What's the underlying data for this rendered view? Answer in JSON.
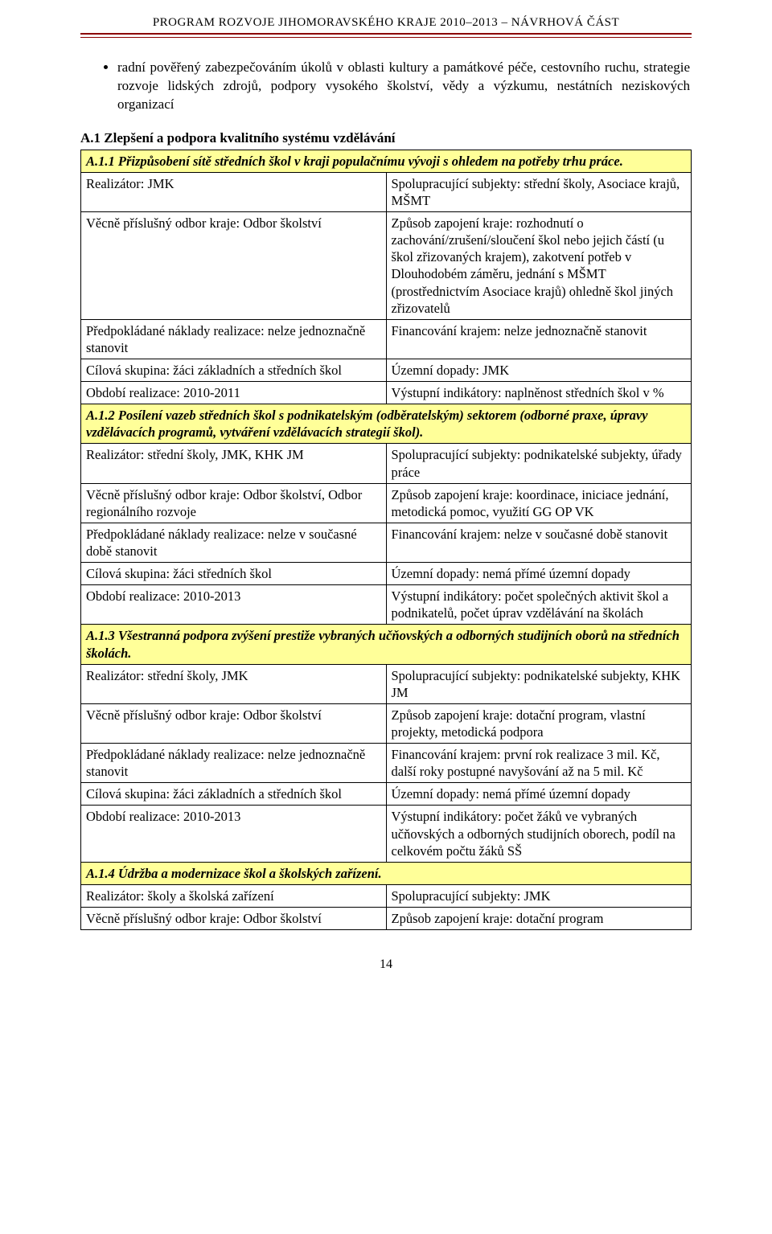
{
  "colors": {
    "rule": "#8b0000",
    "highlight_bg": "#ffff99",
    "border": "#000000",
    "text": "#000000",
    "page_bg": "#ffffff"
  },
  "typography": {
    "font_family": "Times New Roman",
    "body_size_pt": 12,
    "header_size_pt": 11
  },
  "header": "PROGRAM ROZVOJE JIHOMORAVSKÉHO KRAJE 2010–2013 – NÁVRHOVÁ ČÁST",
  "bullet": "radní pověřený zabezpečováním úkolů v oblasti kultury a památkové péče, cestovního ruchu, strategie rozvoje lidských zdrojů, podpory vysokého školství, vědy a výzkumu, nestátních neziskových organizací",
  "section_heading": "A.1 Zlepšení a podpora kvalitního systému vzdělávání",
  "tables": {
    "a11": {
      "title": "A.1.1 Přizpůsobení sítě středních škol v kraji populačnímu vývoji s ohledem na potřeby trhu práce.",
      "rows": [
        [
          "Realizátor: JMK",
          "Spolupracující subjekty: střední školy, Asociace krajů, MŠMT"
        ],
        [
          "Věcně příslušný odbor kraje: Odbor školství",
          "Způsob zapojení kraje: rozhodnutí o zachování/zrušení/sloučení škol nebo jejich částí (u škol zřizovaných krajem), zakotvení potřeb v Dlouhodobém záměru, jednání s MŠMT (prostřednictvím Asociace krajů) ohledně škol jiných zřizovatelů"
        ],
        [
          "Předpokládané náklady realizace: nelze jednoznačně stanovit",
          "Financování krajem: nelze jednoznačně stanovit"
        ],
        [
          "Cílová skupina: žáci základních a středních škol",
          "Územní dopady: JMK"
        ],
        [
          "Období realizace: 2010-2011",
          "Výstupní indikátory: naplněnost středních škol v %"
        ]
      ]
    },
    "a12": {
      "title": "A.1.2 Posílení vazeb středních škol s podnikatelským (odběratelským) sektorem (odborné praxe, úpravy vzdělávacích programů, vytváření vzdělávacích strategií škol).",
      "rows": [
        [
          "Realizátor: střední školy, JMK, KHK JM",
          "Spolupracující subjekty: podnikatelské subjekty, úřady práce"
        ],
        [
          "Věcně příslušný odbor kraje: Odbor školství, Odbor regionálního rozvoje",
          "Způsob zapojení kraje: koordinace, iniciace jednání, metodická pomoc, využití GG OP VK"
        ],
        [
          "Předpokládané náklady realizace: nelze v současné době stanovit",
          "Financování krajem: nelze v současné době stanovit"
        ],
        [
          "Cílová skupina: žáci středních škol",
          "Územní dopady: nemá přímé územní dopady"
        ],
        [
          "Období realizace: 2010-2013",
          "Výstupní indikátory: počet společných aktivit škol a podnikatelů, počet úprav vzdělávání na školách"
        ]
      ]
    },
    "a13": {
      "title": "A.1.3 Všestranná podpora zvýšení prestiže vybraných učňovských a odborných studijních oborů na středních školách.",
      "rows": [
        [
          "Realizátor: střední školy, JMK",
          "Spolupracující subjekty: podnikatelské subjekty, KHK JM"
        ],
        [
          "Věcně příslušný odbor kraje: Odbor školství",
          "Způsob zapojení kraje: dotační program, vlastní projekty, metodická podpora"
        ],
        [
          "Předpokládané náklady realizace: nelze jednoznačně stanovit",
          "Financování krajem: první rok realizace 3 mil. Kč, další roky postupné navyšování až na 5 mil. Kč"
        ],
        [
          "Cílová skupina: žáci základních a středních škol",
          "Územní dopady: nemá přímé územní dopady"
        ],
        [
          "Období realizace: 2010-2013",
          "Výstupní indikátory: počet žáků ve vybraných učňovských a odborných studijních oborech, podíl na celkovém počtu žáků SŠ"
        ]
      ]
    },
    "a14": {
      "title": "A.1.4 Údržba a modernizace škol a školských zařízení.",
      "rows": [
        [
          "Realizátor: školy a školská zařízení",
          "Spolupracující subjekty:  JMK"
        ],
        [
          "Věcně příslušný odbor kraje: Odbor školství",
          "Způsob zapojení kraje: dotační program"
        ]
      ]
    }
  },
  "page_number": "14"
}
